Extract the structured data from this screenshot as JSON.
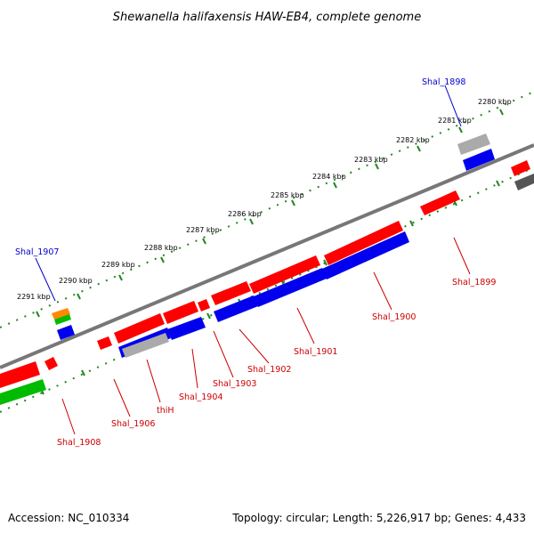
{
  "title": "Shewanella halifaxensis HAW-EB4, complete genome",
  "accession": "Accession: NC_010334",
  "summary": "Topology: circular; Length: 5,226,917 bp; Genes: 4,433",
  "ticks": [
    "2280 kbp",
    "2281 kbp",
    "2282 kbp",
    "2283 kbp",
    "2284 kbp",
    "2285 kbp",
    "2286 kbp",
    "2287 kbp",
    "2288 kbp",
    "2289 kbp",
    "2290 kbp",
    "2291 kbp"
  ],
  "gene_labels": {
    "shal_1898": "Shal_1898",
    "shal_1899": "Shal_1899",
    "shal_1900": "Shal_1900",
    "shal_1901": "Shal_1901",
    "shal_1902": "Shal_1902",
    "shal_1903": "Shal_1903",
    "shal_1904": "Shal_1904",
    "thih": "thiH",
    "shal_1906": "Shal_1906",
    "shal_1907": "Shal_1907",
    "shal_1908": "Shal_1908"
  },
  "colors": {
    "forward": "#ff0000",
    "reverse": "#0000ee",
    "rna": "#aaaaaa",
    "other": "#00bb00",
    "orange": "#ff8800",
    "dark": "#555555",
    "tick": "#228822",
    "backbone": "#777777",
    "label_red": "#cc0000",
    "label_blue": "#0000cc"
  }
}
